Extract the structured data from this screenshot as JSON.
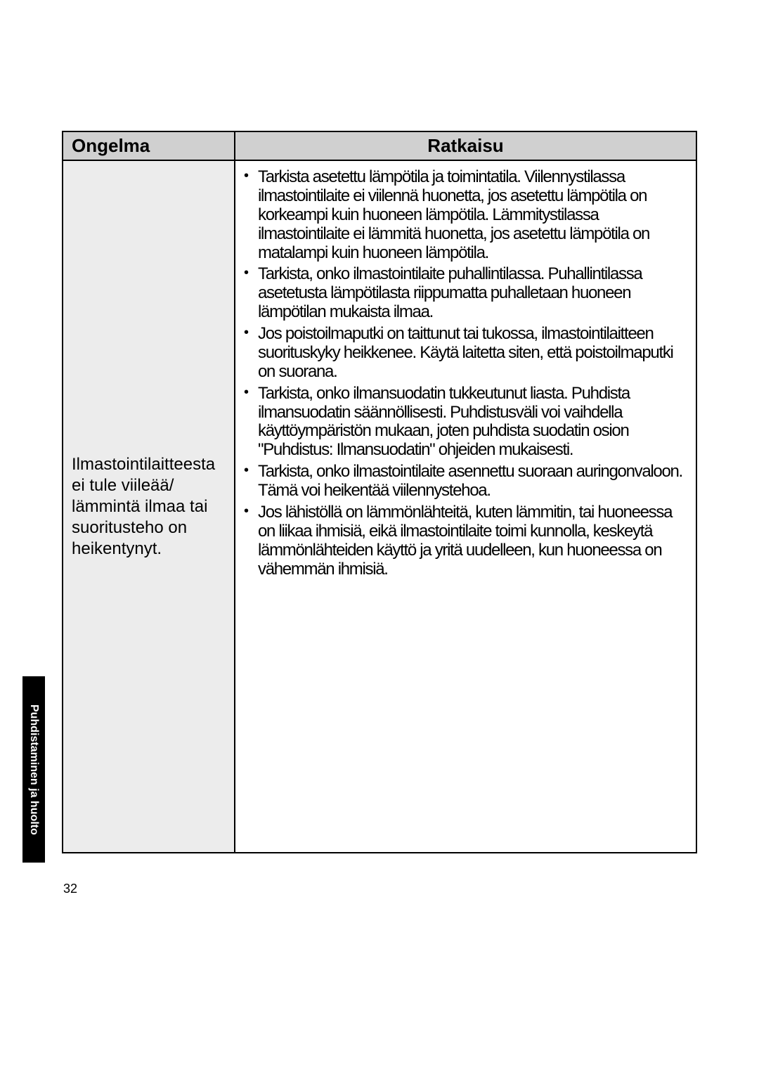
{
  "table": {
    "headers": {
      "problem": "Ongelma",
      "solution": "Ratkaisu"
    },
    "problem_text": "Ilmastointilaitteesta ei tule viileää/\nlämmintä ilmaa tai suoritusteho on heikentynyt.",
    "solution_items": [
      "Tarkista asetettu lämpötila ja toimintatila. Viilennystilassa ilmastointilaite ei viilennä huonetta, jos asetettu lämpötila on korkeampi kuin huoneen lämpötila. Lämmitystilassa ilmastointilaite ei lämmitä huonetta, jos asetettu lämpötila on matalampi kuin huoneen lämpötila.",
      "Tarkista, onko ilmastointilaite puhallintilassa. Puhallintilassa asetetusta lämpötilasta riippumatta puhalletaan huoneen lämpötilan mukaista ilmaa.",
      "Jos poistoilmaputki on taittunut tai tukossa, ilmastointilaitteen suorituskyky heikkenee. Käytä laitetta siten, että poistoilmaputki on suorana.",
      "Tarkista, onko ilmansuodatin tukkeutunut liasta. Puhdista ilmansuodatin säännöllisesti. Puhdistusväli voi vaihdella käyttöympäristön mukaan, joten puhdista suodatin osion \"Puhdistus: Ilmansuodatin\" ohjeiden mukaisesti.",
      "Tarkista, onko ilmastointilaite asennettu suoraan auringonvaloon. Tämä voi heikentää viilennystehoa.",
      "Jos lähistöllä on lämmönlähteitä, kuten lämmitin, tai huoneessa on liikaa ihmisiä, eikä ilmastointilaite toimi kunnolla, keskeytä lämmönlähteiden käyttö ja yritä uudelleen, kun huoneessa on vähemmän ihmisiä."
    ]
  },
  "side_tab": "Puhdistaminen ja huolto",
  "page_number": "32",
  "styles": {
    "page_bg": "#ffffff",
    "header_bg": "#d0d0d0",
    "body_left_bg": "#ececec",
    "body_right_bg": "#ffffff",
    "border_color": "#000000",
    "text_color": "#000000",
    "tab_bg": "#000000",
    "tab_text": "#ffffff",
    "header_font_size": 26,
    "body_font_size": 24,
    "tab_font_size": 16
  }
}
